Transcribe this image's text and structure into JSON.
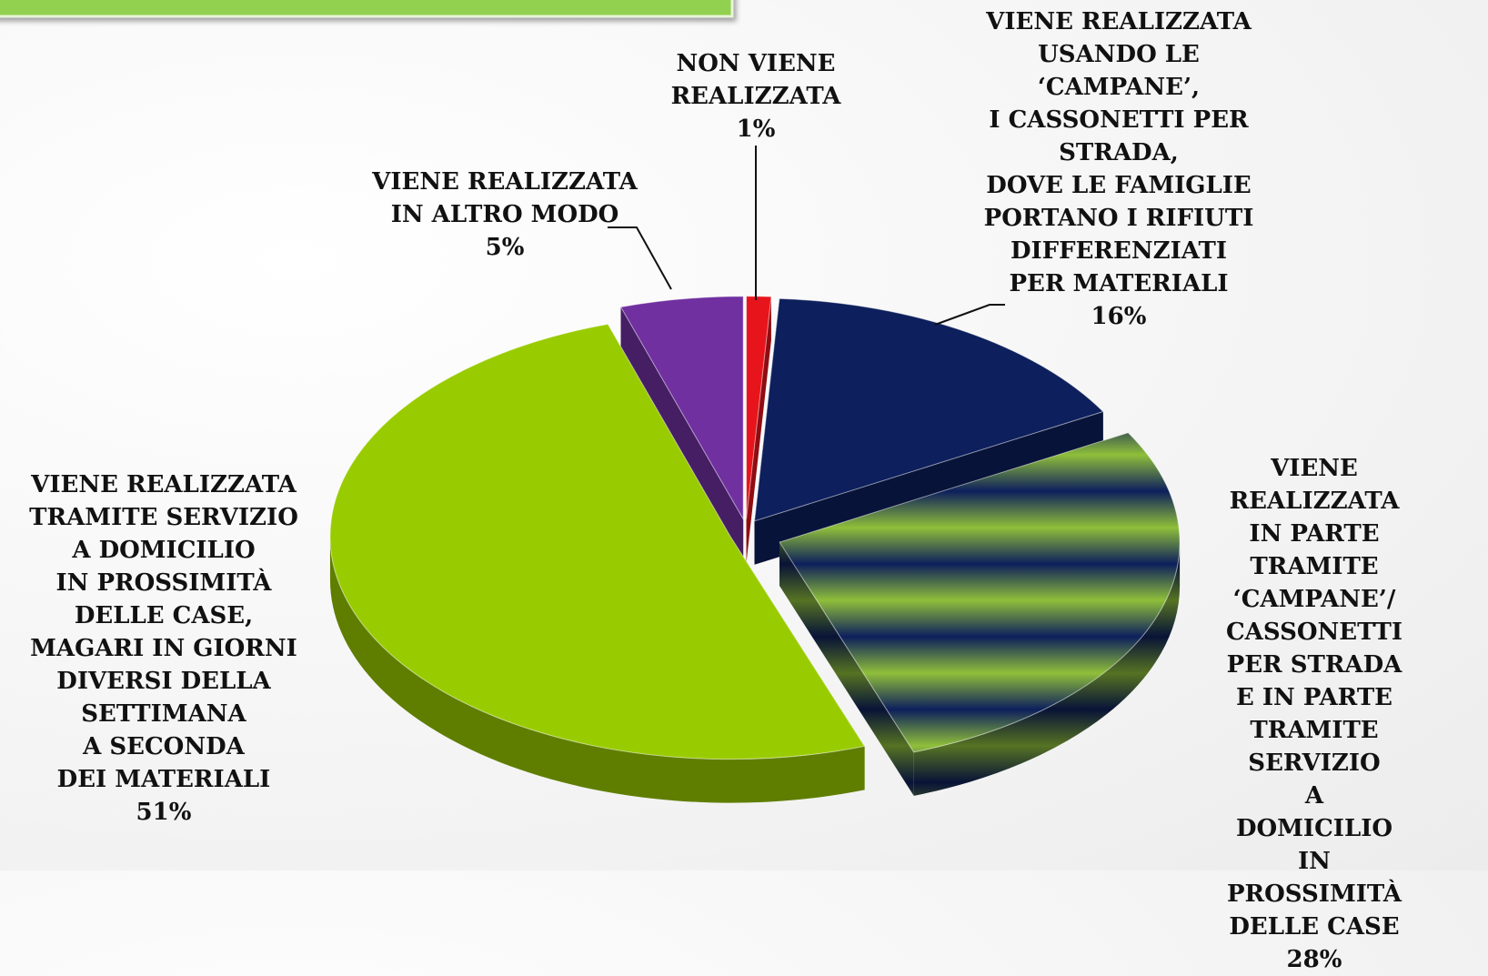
{
  "chart_data": {
    "type": "pie",
    "categories": [
      "NON VIENE\nREALIZZATA",
      "VIENE REALIZZATA\nUSANDO LE\n‘CAMPANE’,\nI CASSONETTI PER\nSTRADA,\nDOVE LE FAMIGLIE\nPORTANO I RIFIUTI\nDIFFERENZIATI\nPER MATERIALI",
      "VIENE REALIZZATA\nIN PARTE\nTRAMITE\n‘CAMPANE’/\nCASSONETTI\nPER STRADA\nE IN PARTE\nTRAMITE SERVIZIO\nA DOMICILIO\nIN PROSSIMITÀ\nDELLE CASE",
      "VIENE REALIZZATA\nTRAMITE SERVIZIO\nA DOMICILIO\nIN PROSSIMITÀ\nDELLE CASE,\nMAGARI IN GIORNI\nDIVERSI DELLA\nSETTIMANA\nA SECONDA\nDEI MATERIALI",
      "VIENE REALIZZATA\nIN ALTRO MODO"
    ],
    "values": [
      1,
      16,
      28,
      51,
      5
    ],
    "value_labels": [
      "1%",
      "16%",
      "28%",
      "51%",
      "5%"
    ],
    "colors": [
      "#e8141c",
      "#0d1f5c",
      "#8fbf3a",
      "#99cc00",
      "#7030a0"
    ]
  }
}
